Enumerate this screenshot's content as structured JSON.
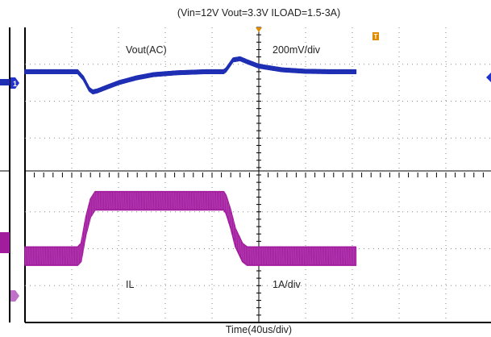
{
  "chart_data": {
    "type": "line",
    "title": "(Vin=12V Vout=3.3V ILOAD=1.5-3A)",
    "xlabel": "Time(40us/div)",
    "grid": true,
    "time_per_div_us": 40,
    "divisions_x": 10,
    "divisions_y": 8,
    "series": [
      {
        "name": "Vout(AC)",
        "scale_label": "200mV/div",
        "color": "#1f2fb4",
        "ripple_half_div": 0.05,
        "ylim_div": [
          -4,
          4
        ],
        "t_us": [
          0,
          45,
          50,
          55,
          58,
          62,
          70,
          80,
          95,
          110,
          130,
          155,
          170,
          172,
          178,
          184,
          190,
          200,
          220,
          240,
          260,
          283
        ],
        "deviation_div": [
          0.0,
          0.0,
          -0.18,
          -0.48,
          -0.55,
          -0.52,
          -0.42,
          -0.3,
          -0.17,
          -0.08,
          -0.03,
          0.0,
          0.0,
          0.05,
          0.32,
          0.35,
          0.27,
          0.15,
          0.05,
          0.01,
          0.0,
          0.0
        ]
      },
      {
        "name": "IL",
        "scale_label": "1A/div",
        "color": "#a21d9e",
        "ripple_half_div": 0.25,
        "ylim_div": [
          -4,
          4
        ],
        "t_us": [
          0,
          45,
          48,
          52,
          56,
          60,
          170,
          172,
          176,
          180,
          186,
          190,
          283
        ],
        "current_A": [
          1.5,
          1.5,
          1.6,
          2.3,
          2.8,
          3.0,
          3.0,
          2.9,
          2.5,
          2.0,
          1.6,
          1.5,
          1.5
        ]
      }
    ],
    "annotations": [
      "Vout(AC)",
      "200mV/div",
      "IL",
      "1A/div"
    ]
  },
  "markers": {
    "trigger_color": "#e08a00",
    "ch1_marker": "channel-1-level-marker",
    "ch2_marker": "channel-2-level-marker",
    "trigger_marker": "trigger-position-marker"
  }
}
